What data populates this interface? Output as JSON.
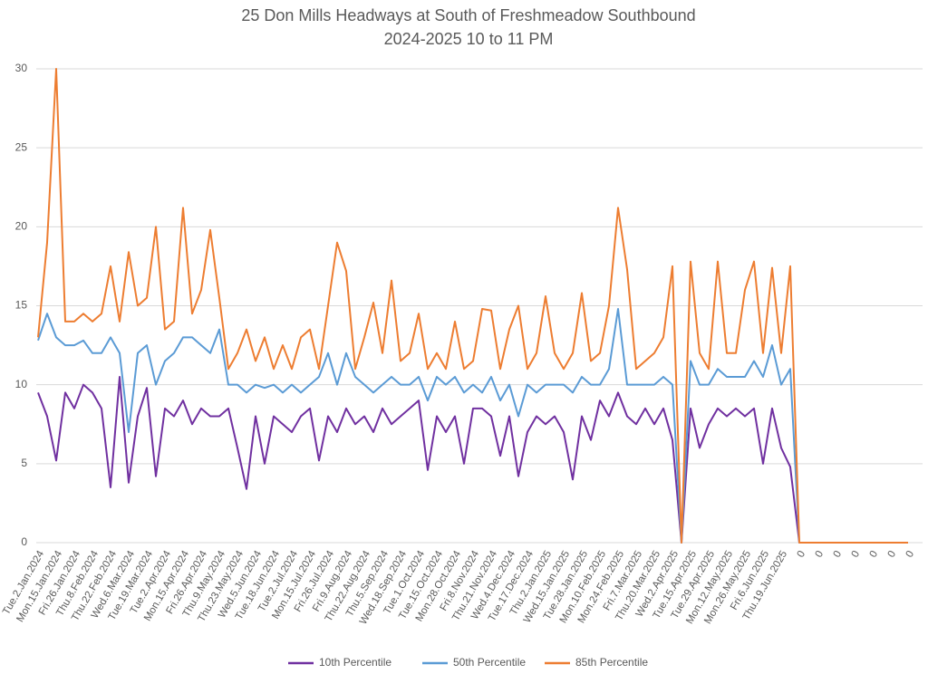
{
  "chart_data": {
    "type": "line",
    "title": "25 Don Mills Headways at South of Freshmeadow Southbound",
    "subtitle": "2024-2025 10 to 11 PM",
    "categories": [
      "Tue.2.Jan.2024",
      null,
      "Mon.15.Jan.2024",
      null,
      "Fri.26.Jan.2024",
      null,
      "Thu.8.Feb.2024",
      null,
      "Thu.22.Feb.2024",
      null,
      "Wed.6.Mar.2024",
      null,
      "Tue.19.Mar.2024",
      null,
      "Tue.2.Apr.2024",
      null,
      "Mon.15.Apr.2024",
      null,
      "Fri.26.Apr.2024",
      null,
      "Thu.9.May.2024",
      null,
      "Thu.23.May.2024",
      null,
      "Wed.5.Jun.2024",
      null,
      "Tue.18.Jun.2024",
      null,
      "Tue.2.Jul.2024",
      null,
      "Mon.15.Jul.2024",
      null,
      "Fri.26.Jul.2024",
      null,
      "Fri.9.Aug.2024",
      null,
      "Thu.22.Aug.2024",
      null,
      "Thu.5.Sep.2024",
      null,
      "Wed.18.Sep.2024",
      null,
      "Tue.1.Oct.2024",
      null,
      "Tue.15.Oct.2024",
      null,
      "Mon.28.Oct.2024",
      null,
      "Fri.8.Nov.2024",
      null,
      "Thu.21.Nov.2024",
      null,
      "Wed.4.Dec.2024",
      null,
      "Tue.17.Dec.2024",
      null,
      "Thu.2.Jan.2025",
      null,
      "Wed.15.Jan.2025",
      null,
      "Tue.28.Jan.2025",
      null,
      "Mon.10.Feb.2025",
      null,
      "Mon.24.Feb.2025",
      null,
      "Fri.7.Mar.2025",
      null,
      "Thu.20.Mar.2025",
      null,
      "Wed.2.Apr.2025",
      null,
      "Tue.15.Apr.2025",
      null,
      "Tue.29.Apr.2025",
      null,
      "Mon.12.May.2025",
      null,
      "Mon.26.May.2025",
      null,
      "Fri.6.Jun.2025",
      null,
      "Thu.19.Jun.2025",
      null,
      "0",
      null,
      "0",
      null,
      "0",
      null,
      "0",
      null,
      "0",
      null,
      "0",
      null,
      "0"
    ],
    "series": [
      {
        "name": "10th Percentile",
        "color": "#7030a0",
        "values": [
          9.5,
          8,
          5.2,
          9.5,
          8.5,
          10,
          9.5,
          8.5,
          3.5,
          10.5,
          3.8,
          8,
          9.8,
          4.2,
          8.5,
          8,
          9,
          7.5,
          8.5,
          8,
          8,
          8.5,
          6,
          3.4,
          8,
          5,
          8,
          7.5,
          7,
          8,
          8.5,
          5.2,
          8,
          7,
          8.5,
          7.5,
          8,
          7,
          8.5,
          7.5,
          8,
          8.5,
          9,
          4.6,
          8,
          7,
          8,
          5,
          8.5,
          8.5,
          8,
          5.5,
          8,
          4.2,
          7,
          8,
          7.5,
          8,
          7,
          4,
          8,
          6.5,
          9,
          8,
          9.5,
          8,
          7.5,
          8.5,
          7.5,
          8.5,
          6.5,
          0,
          8.5,
          6,
          7.5,
          8.5,
          8,
          8.5,
          8,
          8.5,
          5,
          8.5,
          6,
          4.8,
          0,
          0,
          0,
          0,
          0,
          0,
          0,
          0,
          0,
          0,
          0,
          0,
          0
        ]
      },
      {
        "name": "50th Percentile",
        "color": "#5b9bd5",
        "values": [
          12.8,
          14.5,
          13,
          12.5,
          12.5,
          12.8,
          12,
          12,
          13,
          12,
          7,
          12,
          12.5,
          10,
          11.5,
          12,
          13,
          13,
          12.5,
          12,
          13.5,
          10,
          10,
          9.5,
          10,
          9.8,
          10,
          9.5,
          10,
          9.5,
          10,
          10.5,
          12,
          10,
          12,
          10.5,
          10,
          9.5,
          10,
          10.5,
          10,
          10,
          10.5,
          9,
          10.5,
          10,
          10.5,
          9.5,
          10,
          9.5,
          10.5,
          9,
          10,
          8,
          10,
          9.5,
          10,
          10,
          10,
          9.5,
          10.5,
          10,
          10,
          11,
          14.8,
          10,
          10,
          10,
          10,
          10.5,
          10,
          0,
          11.5,
          10,
          10,
          11,
          10.5,
          10.5,
          10.5,
          11.5,
          10.5,
          12.5,
          10,
          11,
          0,
          0,
          0,
          0,
          0,
          0,
          0,
          0,
          0,
          0,
          0,
          0,
          0
        ]
      },
      {
        "name": "85th Percentile",
        "color": "#ed7d31",
        "values": [
          13,
          19,
          30,
          14,
          14,
          14.5,
          14,
          14.5,
          17.5,
          14,
          18.4,
          15,
          15.5,
          20,
          13.5,
          14,
          21.2,
          14.5,
          16,
          19.8,
          15.5,
          11,
          12,
          13.5,
          11.5,
          13,
          11,
          12.5,
          11,
          13,
          13.5,
          11,
          15,
          19,
          17.2,
          11,
          13,
          15.2,
          12,
          16.6,
          11.5,
          12,
          14.5,
          11,
          12,
          11,
          14,
          11,
          11.5,
          14.8,
          14.7,
          11,
          13.5,
          15,
          11,
          12,
          15.6,
          12,
          11,
          12,
          15.8,
          11.5,
          12,
          15,
          21.2,
          17.3,
          11,
          11.5,
          12,
          13,
          17.5,
          0,
          17.8,
          12,
          11,
          17.8,
          12,
          12,
          16,
          17.8,
          12,
          17.4,
          12,
          17.5,
          0,
          0,
          0,
          0,
          0,
          0,
          0,
          0,
          0,
          0,
          0,
          0,
          0
        ]
      }
    ],
    "ylim": [
      0,
      30
    ],
    "yticks": [
      0,
      5,
      10,
      15,
      20,
      25,
      30
    ],
    "grid": true,
    "legend": "bottom"
  }
}
